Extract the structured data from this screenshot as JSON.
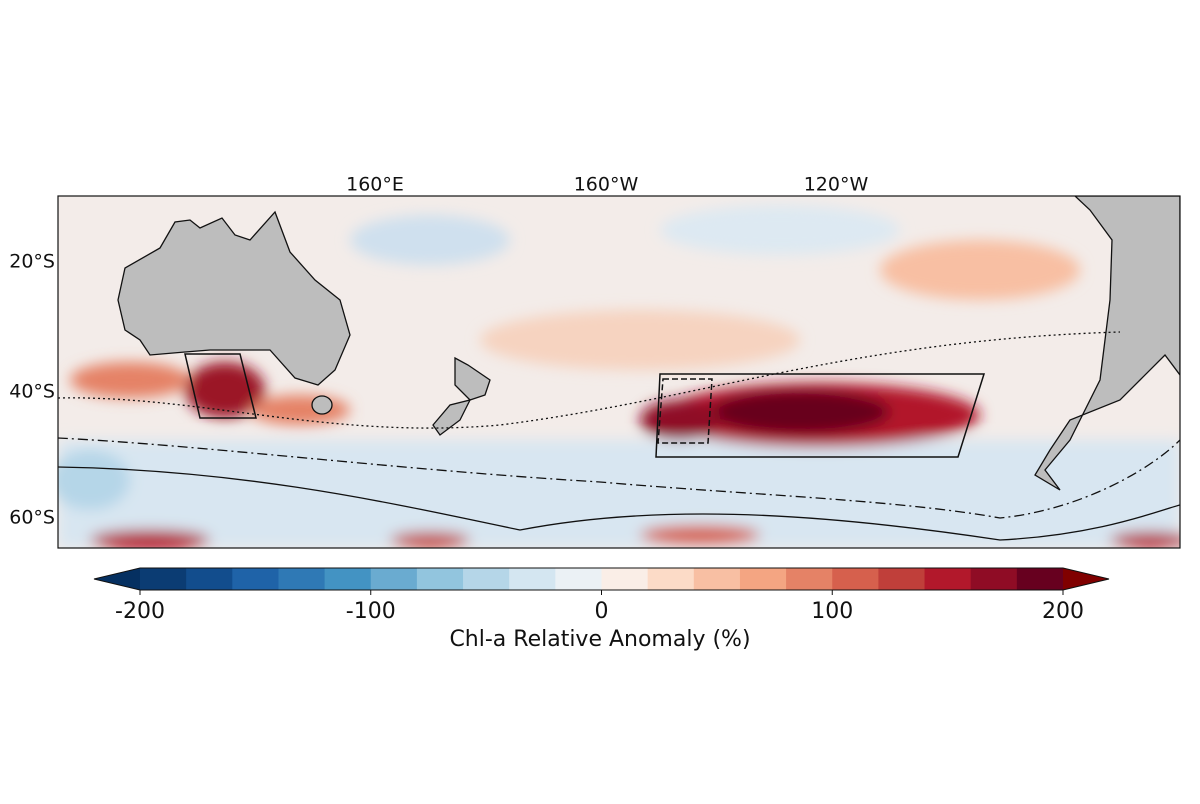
{
  "map": {
    "lon_labels": [
      "160°E",
      "160°W",
      "120°W"
    ],
    "lat_labels": [
      "20°S",
      "40°S",
      "60°S"
    ],
    "colorbar": {
      "label": "Chl-a Relative Anomaly (%)",
      "lim": [
        -200,
        200
      ],
      "ticks": [
        -200,
        -100,
        0,
        100,
        200
      ],
      "levels": [
        -200,
        -180,
        -160,
        -140,
        -120,
        -100,
        -80,
        -60,
        -40,
        -20,
        0,
        20,
        40,
        60,
        80,
        100,
        120,
        140,
        160,
        180,
        200
      ],
      "colors": [
        "#0b3c73",
        "#124d8d",
        "#1f63a8",
        "#2f79b5",
        "#4393c3",
        "#6aabd0",
        "#92c5de",
        "#b5d6e8",
        "#d4e6f1",
        "#ebf1f5",
        "#faeee7",
        "#fcdbc7",
        "#f8bfa3",
        "#f4a582",
        "#e58266",
        "#d6604d",
        "#c03f3a",
        "#b2182b",
        "#8f0c25",
        "#67001f"
      ],
      "extend_colors": [
        "#053061",
        "#800000"
      ]
    }
  }
}
